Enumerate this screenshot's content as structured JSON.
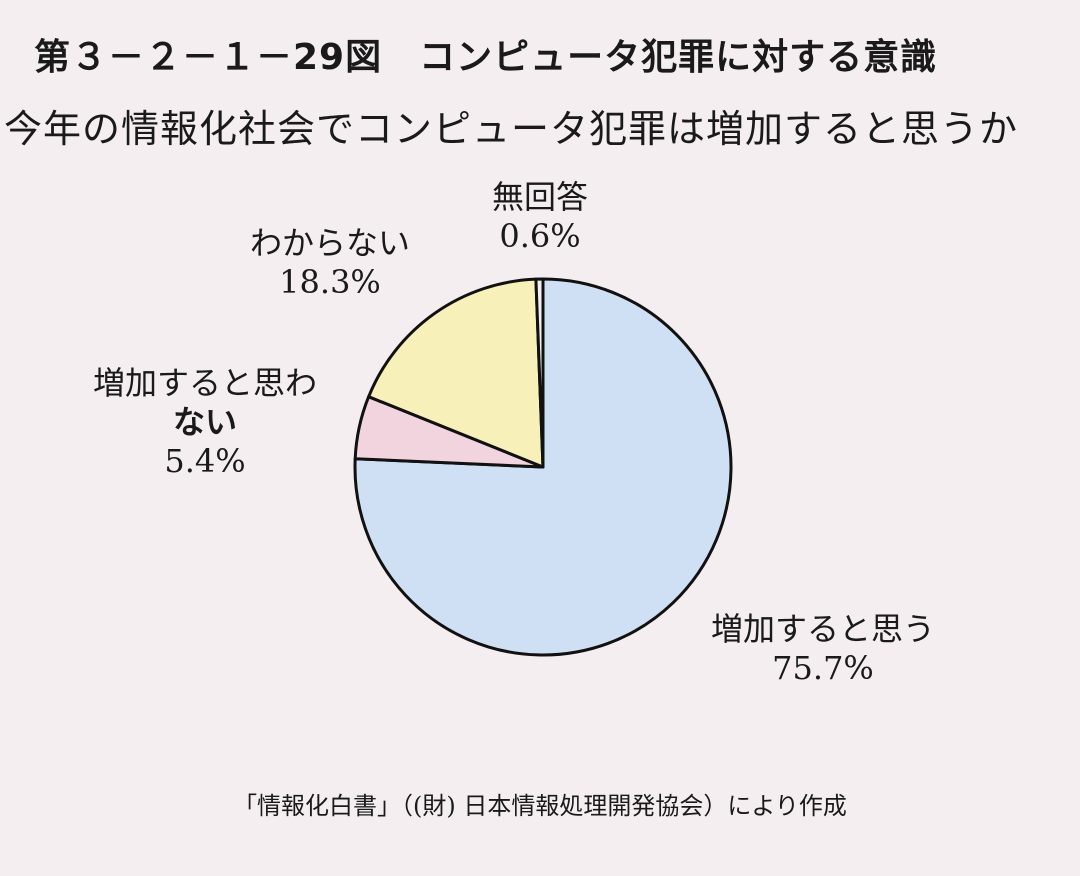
{
  "figure": {
    "title": "第３－２－１－29図　コンピュータ犯罪に対する意識",
    "subtitle": "今年の情報化社会でコンピュータ犯罪は増加すると思うか",
    "source": "「情報化白書」（(財) 日本情報処理開発協会）により作成"
  },
  "chart_data": {
    "type": "pie",
    "slices": [
      {
        "label": "増加すると思う",
        "value": 75.7,
        "value_text": "75.7%",
        "color": "#cfe0f4"
      },
      {
        "label": "増加すると思わない",
        "value": 5.4,
        "value_text": "5.4%",
        "color": "#f2d4de"
      },
      {
        "label": "わからない",
        "value": 18.3,
        "value_text": "18.3%",
        "color": "#f7f0b8"
      },
      {
        "label": "無回答",
        "value": 0.6,
        "value_text": "0.6%",
        "color": "#f4eef0"
      }
    ],
    "start": "12 o'clock",
    "direction": "clockwise"
  },
  "labels": {
    "increase": {
      "line1": "増加すると思う",
      "value": "75.7%"
    },
    "no_increase": {
      "line1": "増加すると思わ",
      "line2": "ない",
      "value": "5.4%"
    },
    "dont_know": {
      "line1": "わからない",
      "value": "18.3%"
    },
    "no_answer": {
      "line1": "無回答",
      "value": "0.6%"
    }
  }
}
